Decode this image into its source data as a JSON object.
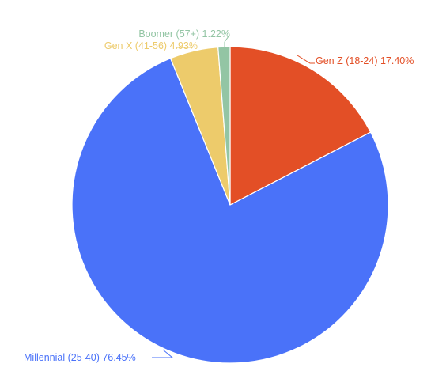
{
  "chart_data": {
    "type": "pie",
    "title": "",
    "start_angle_deg": 0,
    "direction": "clockwise",
    "slices": [
      {
        "label": "Gen Z (18-24) 17.40%",
        "category": "Gen Z (18-24)",
        "value": 17.4,
        "color": "#E34F26"
      },
      {
        "label": "Millennial (25-40) 76.45%",
        "category": "Millennial (25-40)",
        "value": 76.45,
        "color": "#4A72F9"
      },
      {
        "label": "Gen X (41-56) 4.93%",
        "category": "Gen X (41-56)",
        "value": 4.93,
        "color": "#EDCB6B"
      },
      {
        "label": "Boomer (57+) 1.22%",
        "category": "Boomer (57+)",
        "value": 1.22,
        "color": "#93C5A4"
      }
    ]
  }
}
